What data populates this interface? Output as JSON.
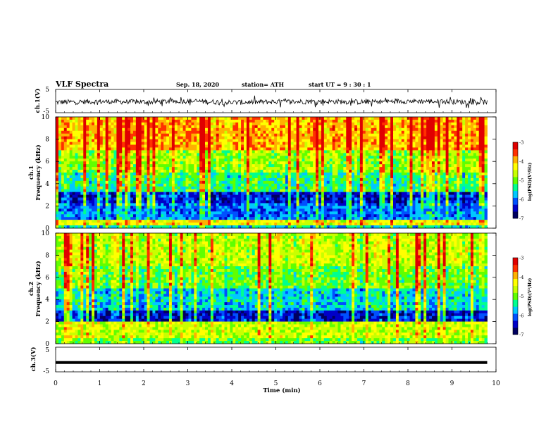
{
  "header": {
    "title": "VLF Spectra",
    "date": "Sep. 18, 2020",
    "station": "station= ATH",
    "start": "start  UT =   9 : 30 : 1"
  },
  "chart_data": [
    {
      "type": "line",
      "panel": "ch1-waveform",
      "ylabel": "ch.1(V)",
      "ylim": [
        -5,
        5
      ],
      "yticks": [
        "5",
        "-5"
      ],
      "xlim": [
        0,
        10
      ],
      "trace_color": "#000000",
      "description_of_data": "noisy waveform centred near -0.3 V with amplitude about 1 V",
      "x": [
        0.0,
        1.0,
        2.0,
        3.0,
        4.0,
        5.0,
        6.0,
        7.0,
        8.0,
        9.0,
        9.8
      ],
      "y": [
        -0.5,
        -0.2,
        -0.4,
        0.0,
        -0.6,
        -0.3,
        -0.2,
        -0.4,
        0.0,
        -0.3,
        -0.5
      ]
    },
    {
      "type": "heatmap",
      "panel": "ch1-spectrogram",
      "ylabel": "ch.1 Frequency (kHz)",
      "ylabel_line1": "ch.1",
      "ylabel_line2": "Frequency  (kHz)",
      "xlim": [
        0,
        10
      ],
      "ylim": [
        0,
        10
      ],
      "yticks": [
        "0",
        "2",
        "4",
        "6",
        "8",
        "10"
      ],
      "data_extent_min": 9.8,
      "colorbar": {
        "label": "log(PSD)(V²/Hz)",
        "range": [
          -7,
          -3
        ],
        "ticks": [
          "-3",
          "-4",
          "-5",
          "-6",
          "-7"
        ]
      },
      "bands": [
        {
          "f_lo": 0.0,
          "f_hi": 0.3,
          "level": -5.6
        },
        {
          "f_lo": 0.3,
          "f_hi": 0.8,
          "level": -4.4
        },
        {
          "f_lo": 0.8,
          "f_hi": 2.2,
          "level": -6.0
        },
        {
          "f_lo": 2.2,
          "f_hi": 3.2,
          "level": -6.4
        },
        {
          "f_lo": 3.2,
          "f_hi": 5.0,
          "level": -5.3
        },
        {
          "f_lo": 5.0,
          "f_hi": 7.0,
          "level": -4.8
        },
        {
          "f_lo": 7.0,
          "f_hi": 10.0,
          "level": -4.0
        }
      ]
    },
    {
      "type": "heatmap",
      "panel": "ch2-spectrogram",
      "ylabel": "ch.2 Frequency (kHz)",
      "ylabel_line1": "ch.2",
      "ylabel_line2": "Frequency  (kHz)",
      "xlim": [
        0,
        10
      ],
      "ylim": [
        0,
        10
      ],
      "yticks": [
        "0",
        "2",
        "4",
        "6",
        "8",
        "10"
      ],
      "data_extent_min": 9.8,
      "colorbar": {
        "label": "log(PSD)(V²/Hz)",
        "range": [
          -7,
          -3
        ],
        "ticks": [
          "-3",
          "-4",
          "-5",
          "-6",
          "-7"
        ]
      },
      "bands": [
        {
          "f_lo": 0.0,
          "f_hi": 0.4,
          "level": -5.0
        },
        {
          "f_lo": 0.4,
          "f_hi": 2.0,
          "level": -4.6
        },
        {
          "f_lo": 2.0,
          "f_hi": 3.0,
          "level": -6.4
        },
        {
          "f_lo": 3.0,
          "f_hi": 5.0,
          "level": -5.6
        },
        {
          "f_lo": 5.0,
          "f_hi": 7.0,
          "level": -5.0
        },
        {
          "f_lo": 7.0,
          "f_hi": 10.0,
          "level": -4.6
        }
      ]
    },
    {
      "type": "line",
      "panel": "ch3-waveform",
      "ylabel": "ch.3(V)",
      "ylim": [
        -5,
        5
      ],
      "yticks": [
        "5",
        "-5"
      ],
      "xlim": [
        0,
        10
      ],
      "trace_color": "#000000",
      "x": [
        0.0,
        9.8
      ],
      "y": [
        -1.2,
        -1.2
      ]
    }
  ],
  "xaxis": {
    "label": "Time  (min)",
    "ticks": [
      "0",
      "1",
      "2",
      "3",
      "4",
      "5",
      "6",
      "7",
      "8",
      "9",
      "10"
    ]
  },
  "colormap": [
    "#000060",
    "#0000c8",
    "#0050ff",
    "#00c8ff",
    "#00ff90",
    "#60ff00",
    "#c8ff00",
    "#ffff00",
    "#ffb000",
    "#ff3000",
    "#e00000",
    "#ffffff"
  ]
}
